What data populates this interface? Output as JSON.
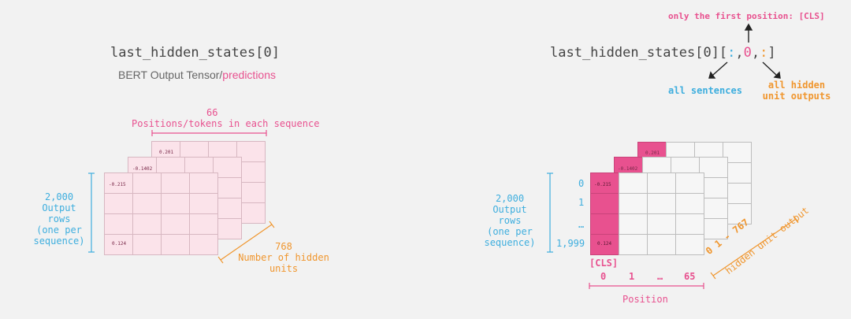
{
  "left": {
    "title": "last_hidden_states[0]",
    "subtitle_main": "BERT Output Tensor/",
    "subtitle_pink": "predictions",
    "positions_count": "66",
    "positions_label": "Positions/tokens in each sequence",
    "rows_count": "2,000",
    "rows_label_1": "Output rows",
    "rows_label_2": "(one per",
    "rows_label_3": "sequence)",
    "hidden_count": "768",
    "hidden_label_1": "Number of hidden",
    "hidden_label_2": "units",
    "val_back": "0.201",
    "val_mid": "-0.1402",
    "val_front_top": "-0.215",
    "val_front_bottom": "0.124"
  },
  "right": {
    "title_prefix": "last_hidden_states[0][",
    "title_colon1": ":",
    "title_comma1": ",",
    "title_zero": "0",
    "title_comma2": ",",
    "title_colon2": ":",
    "title_suffix": "]",
    "first_position_note": "only the first position: [CLS]",
    "all_sentences": "all sentences",
    "hidden_outputs_1": "all hidden",
    "hidden_outputs_2": "unit outputs",
    "rows_count": "2,000",
    "rows_label_1": "Output rows",
    "rows_label_2": "(one per",
    "rows_label_3": "sequence)",
    "row_idx_0": "0",
    "row_idx_1": "1",
    "row_idx_dots": "…",
    "row_idx_last": "1,999",
    "cls_label": "[CLS]",
    "pos_0": "0",
    "pos_1": "1",
    "pos_dots": "…",
    "pos_65": "65",
    "position_label": "Position",
    "hidden_range": "0    1 - 767",
    "hidden_unit_label": "hidden unit output",
    "val_back": "0.201",
    "val_mid": "-0.1402",
    "val_front_top": "-0.215",
    "val_front_bottom": "0.124"
  },
  "colors": {
    "pink": "#e8518f",
    "blue": "#3eaede",
    "orange": "#f0962e",
    "light_pink": "#fbe3ea"
  }
}
